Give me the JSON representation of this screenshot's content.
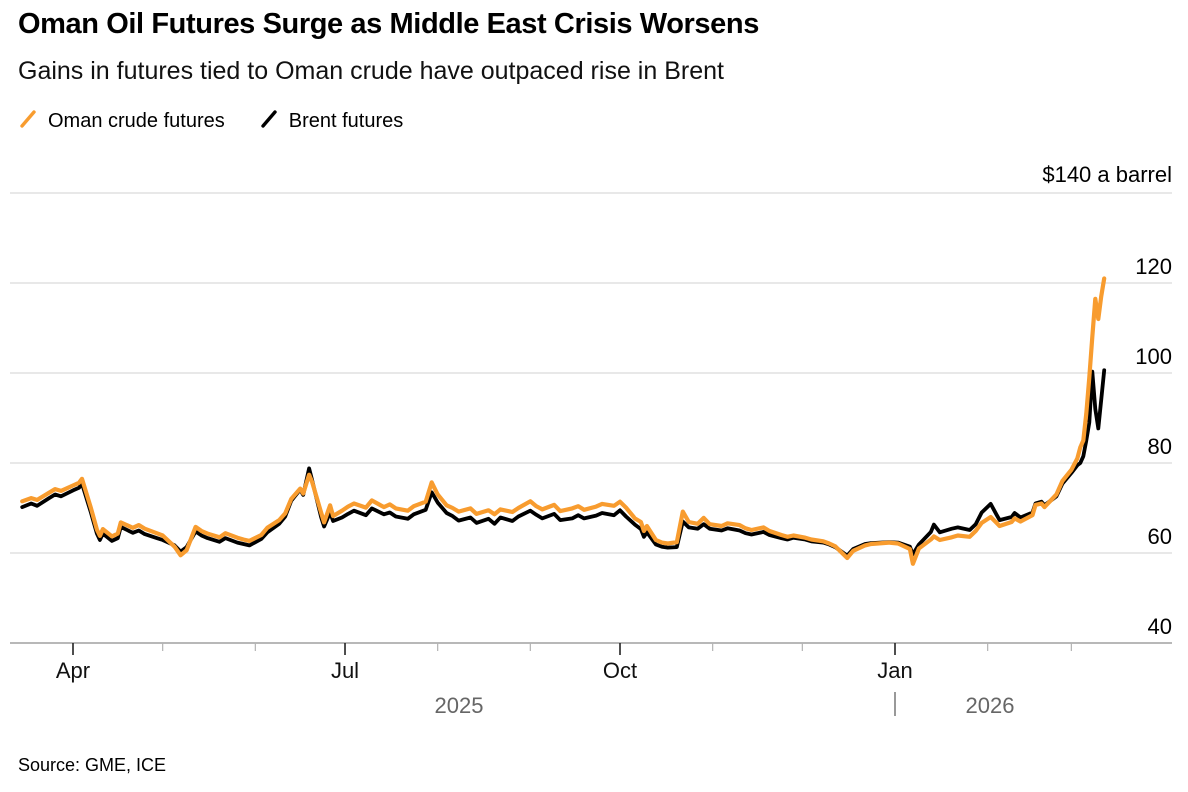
{
  "header": {
    "title": "Oman Oil Futures Surge as Middle East Crisis Worsens",
    "subtitle": "Gains in futures tied to Oman crude have outpaced rise in Brent"
  },
  "legend": {
    "items": [
      {
        "label": "Oman crude futures",
        "color": "#F89C2F"
      },
      {
        "label": "Brent futures",
        "color": "#000000"
      }
    ]
  },
  "axis": {
    "unit_label": "$140 a barrel",
    "y_tick_labels": [
      "120",
      "100",
      "80",
      "60",
      "40"
    ],
    "x_tick_labels": [
      "Apr",
      "Jul",
      "Oct",
      "Jan"
    ],
    "year_labels": {
      "left": "2025",
      "right": "2026"
    }
  },
  "source": "Source: GME, ICE",
  "colors": {
    "oman_orange": "#F89C2F",
    "brent_black": "#000000",
    "gridline": "#D0D0D0",
    "axis_line": "#8E8E8E",
    "major_tick": "#222222",
    "minor_tick": "#B3B3B3",
    "year_gray": "#666666",
    "year_separator": "#999999"
  },
  "chart_data": {
    "type": "line",
    "title": "Oman Oil Futures Surge as Middle East Crisis Worsens",
    "subtitle": "Gains in futures tied to Oman crude have outpaced rise in Brent",
    "unit_label": "$140 a barrel",
    "ylim": [
      40,
      140
    ],
    "ytick_interval": 20,
    "yticks_shown": [
      140,
      120,
      100,
      80,
      60,
      40
    ],
    "grid": "horizontal",
    "legend_position": "top-left",
    "x_range": [
      "2025-03-15",
      "2026-03-12"
    ],
    "x_major_ticks": [
      "2025-04-01",
      "2025-07-01",
      "2025-10-01",
      "2026-01-01"
    ],
    "x_major_labels": [
      "Apr",
      "Jul",
      "Oct",
      "Jan"
    ],
    "x_minor_ticks": [
      "2025-05-01",
      "2025-06-01",
      "2025-08-01",
      "2025-09-01",
      "2025-11-01",
      "2025-12-01",
      "2026-02-01",
      "2026-03-01"
    ],
    "year_separator_date": "2026-01-01",
    "series": [
      {
        "name": "Oman crude futures",
        "color": "#F89C2F"
      },
      {
        "name": "Brent futures",
        "color": "#000000"
      }
    ],
    "points_format": [
      "date",
      "oman_crude",
      "brent"
    ],
    "points": [
      [
        "2025-03-15",
        71.5,
        70.2
      ],
      [
        "2025-03-18",
        72.2,
        71.0
      ],
      [
        "2025-03-20",
        71.8,
        70.5
      ],
      [
        "2025-03-24",
        73.4,
        72.2
      ],
      [
        "2025-03-26",
        74.2,
        73.0
      ],
      [
        "2025-03-28",
        73.8,
        72.6
      ],
      [
        "2025-04-01",
        75.0,
        73.9
      ],
      [
        "2025-04-03",
        75.6,
        74.5
      ],
      [
        "2025-04-04",
        76.5,
        75.4
      ],
      [
        "2025-04-07",
        70.0,
        69.0
      ],
      [
        "2025-04-09",
        65.2,
        64.3
      ],
      [
        "2025-04-10",
        63.8,
        62.9
      ],
      [
        "2025-04-11",
        65.3,
        64.3
      ],
      [
        "2025-04-14",
        63.7,
        62.7
      ],
      [
        "2025-04-16",
        64.3,
        63.3
      ],
      [
        "2025-04-17",
        66.8,
        65.8
      ],
      [
        "2025-04-21",
        65.6,
        64.5
      ],
      [
        "2025-04-23",
        66.2,
        65.0
      ],
      [
        "2025-04-25",
        65.4,
        64.2
      ],
      [
        "2025-04-29",
        64.4,
        63.3
      ],
      [
        "2025-05-01",
        63.9,
        62.9
      ],
      [
        "2025-05-05",
        61.4,
        61.7
      ],
      [
        "2025-05-07",
        59.5,
        60.3
      ],
      [
        "2025-05-09",
        60.6,
        61.3
      ],
      [
        "2025-05-12",
        65.8,
        64.8
      ],
      [
        "2025-05-14",
        64.9,
        63.9
      ],
      [
        "2025-05-16",
        64.3,
        63.3
      ],
      [
        "2025-05-20",
        63.5,
        62.5
      ],
      [
        "2025-05-22",
        64.4,
        63.3
      ],
      [
        "2025-05-26",
        63.4,
        62.3
      ],
      [
        "2025-05-28",
        63.0,
        62.0
      ],
      [
        "2025-05-30",
        62.7,
        61.7
      ],
      [
        "2025-06-03",
        64.0,
        63.1
      ],
      [
        "2025-06-05",
        65.6,
        64.6
      ],
      [
        "2025-06-09",
        67.3,
        66.5
      ],
      [
        "2025-06-11",
        68.8,
        68.1
      ],
      [
        "2025-06-13",
        72.0,
        71.6
      ],
      [
        "2025-06-16",
        74.3,
        74.1
      ],
      [
        "2025-06-17",
        73.2,
        72.9
      ],
      [
        "2025-06-19",
        77.4,
        78.8
      ],
      [
        "2025-06-20",
        75.8,
        76.2
      ],
      [
        "2025-06-23",
        69.0,
        68.0
      ],
      [
        "2025-06-24",
        66.8,
        65.9
      ],
      [
        "2025-06-26",
        70.6,
        69.0
      ],
      [
        "2025-06-27",
        68.2,
        67.1
      ],
      [
        "2025-06-30",
        69.4,
        67.9
      ],
      [
        "2025-07-02",
        70.3,
        68.7
      ],
      [
        "2025-07-04",
        71.0,
        69.4
      ],
      [
        "2025-07-08",
        70.1,
        68.4
      ],
      [
        "2025-07-10",
        71.7,
        69.9
      ],
      [
        "2025-07-14",
        70.2,
        68.6
      ],
      [
        "2025-07-16",
        70.8,
        69.0
      ],
      [
        "2025-07-18",
        69.9,
        68.1
      ],
      [
        "2025-07-22",
        69.4,
        67.6
      ],
      [
        "2025-07-24",
        70.4,
        68.6
      ],
      [
        "2025-07-28",
        71.4,
        69.6
      ],
      [
        "2025-07-30",
        75.7,
        73.5
      ],
      [
        "2025-08-01",
        73.0,
        71.2
      ],
      [
        "2025-08-04",
        70.6,
        68.9
      ],
      [
        "2025-08-06",
        70.0,
        68.2
      ],
      [
        "2025-08-08",
        69.2,
        67.2
      ],
      [
        "2025-08-12",
        69.9,
        67.9
      ],
      [
        "2025-08-14",
        68.7,
        66.7
      ],
      [
        "2025-08-18",
        69.5,
        67.6
      ],
      [
        "2025-08-20",
        68.6,
        66.5
      ],
      [
        "2025-08-22",
        69.7,
        67.9
      ],
      [
        "2025-08-26",
        69.1,
        67.1
      ],
      [
        "2025-08-28",
        70.0,
        68.1
      ],
      [
        "2025-09-01",
        71.5,
        69.4
      ],
      [
        "2025-09-03",
        70.4,
        68.5
      ],
      [
        "2025-09-05",
        69.7,
        67.7
      ],
      [
        "2025-09-09",
        70.7,
        68.7
      ],
      [
        "2025-09-11",
        69.3,
        67.3
      ],
      [
        "2025-09-15",
        69.9,
        67.7
      ],
      [
        "2025-09-17",
        70.4,
        68.4
      ],
      [
        "2025-09-19",
        69.6,
        67.7
      ],
      [
        "2025-09-23",
        70.3,
        68.3
      ],
      [
        "2025-09-25",
        70.9,
        68.9
      ],
      [
        "2025-09-29",
        70.5,
        68.4
      ],
      [
        "2025-10-01",
        71.4,
        69.5
      ],
      [
        "2025-10-03",
        70.1,
        68.1
      ],
      [
        "2025-10-06",
        67.7,
        66.3
      ],
      [
        "2025-10-08",
        66.9,
        65.3
      ],
      [
        "2025-10-09",
        64.9,
        63.6
      ],
      [
        "2025-10-10",
        66.0,
        64.6
      ],
      [
        "2025-10-13",
        62.9,
        61.9
      ],
      [
        "2025-10-15",
        62.3,
        61.4
      ],
      [
        "2025-10-17",
        62.1,
        61.2
      ],
      [
        "2025-10-20",
        62.4,
        61.3
      ],
      [
        "2025-10-22",
        69.2,
        67.0
      ],
      [
        "2025-10-24",
        66.9,
        65.7
      ],
      [
        "2025-10-27",
        66.5,
        65.4
      ],
      [
        "2025-10-29",
        67.8,
        66.4
      ],
      [
        "2025-10-31",
        66.4,
        65.4
      ],
      [
        "2025-11-04",
        66.0,
        65.0
      ],
      [
        "2025-11-06",
        66.6,
        65.5
      ],
      [
        "2025-11-10",
        66.2,
        65.0
      ],
      [
        "2025-11-12",
        65.5,
        64.4
      ],
      [
        "2025-11-14",
        65.1,
        64.1
      ],
      [
        "2025-11-18",
        65.7,
        64.7
      ],
      [
        "2025-11-20",
        64.9,
        64.0
      ],
      [
        "2025-11-24",
        64.0,
        63.3
      ],
      [
        "2025-11-26",
        63.6,
        63.0
      ],
      [
        "2025-11-28",
        63.9,
        63.4
      ],
      [
        "2025-12-02",
        63.4,
        63.0
      ],
      [
        "2025-12-04",
        63.0,
        62.6
      ],
      [
        "2025-12-08",
        62.6,
        62.3
      ],
      [
        "2025-12-10",
        62.1,
        61.9
      ],
      [
        "2025-12-12",
        61.5,
        61.3
      ],
      [
        "2025-12-16",
        58.9,
        59.4
      ],
      [
        "2025-12-18",
        60.5,
        60.9
      ],
      [
        "2025-12-22",
        61.7,
        62.0
      ],
      [
        "2025-12-24",
        62.0,
        62.2
      ],
      [
        "2025-12-30",
        62.3,
        62.4
      ],
      [
        "2026-01-02",
        62.1,
        62.3
      ],
      [
        "2026-01-06",
        60.9,
        61.4
      ],
      [
        "2026-01-07",
        57.6,
        59.7
      ],
      [
        "2026-01-09",
        61.0,
        61.9
      ],
      [
        "2026-01-13",
        63.0,
        64.7
      ],
      [
        "2026-01-14",
        63.7,
        66.3
      ],
      [
        "2026-01-16",
        62.9,
        64.6
      ],
      [
        "2026-01-20",
        63.5,
        65.4
      ],
      [
        "2026-01-22",
        63.9,
        65.7
      ],
      [
        "2026-01-26",
        63.6,
        65.1
      ],
      [
        "2026-01-28",
        64.9,
        66.4
      ],
      [
        "2026-01-30",
        66.7,
        69.0
      ],
      [
        "2026-02-02",
        68.0,
        70.9
      ],
      [
        "2026-02-04",
        66.7,
        68.5
      ],
      [
        "2026-02-05",
        66.0,
        67.3
      ],
      [
        "2026-02-09",
        66.9,
        68.0
      ],
      [
        "2026-02-10",
        67.7,
        68.9
      ],
      [
        "2026-02-12",
        67.0,
        67.9
      ],
      [
        "2026-02-16",
        68.4,
        69.0
      ],
      [
        "2026-02-17",
        70.7,
        71.0
      ],
      [
        "2026-02-19",
        71.0,
        71.4
      ],
      [
        "2026-02-20",
        70.2,
        70.6
      ],
      [
        "2026-02-24",
        73.0,
        72.6
      ],
      [
        "2026-02-26",
        76.0,
        75.4
      ],
      [
        "2026-03-01",
        78.5,
        77.8
      ],
      [
        "2026-03-03",
        81.0,
        79.5
      ],
      [
        "2026-03-04",
        83.5,
        80.0
      ],
      [
        "2026-03-05",
        85.0,
        81.5
      ],
      [
        "2026-03-06",
        91.0,
        85.0
      ],
      [
        "2026-03-07",
        99.0,
        89.0
      ],
      [
        "2026-03-08",
        108.0,
        100.3
      ],
      [
        "2026-03-09",
        116.5,
        92.0
      ],
      [
        "2026-03-10",
        112.0,
        87.7
      ],
      [
        "2026-03-11",
        117.0,
        94.0
      ],
      [
        "2026-03-12",
        121.0,
        100.6
      ]
    ],
    "source": "Source: GME, ICE"
  }
}
